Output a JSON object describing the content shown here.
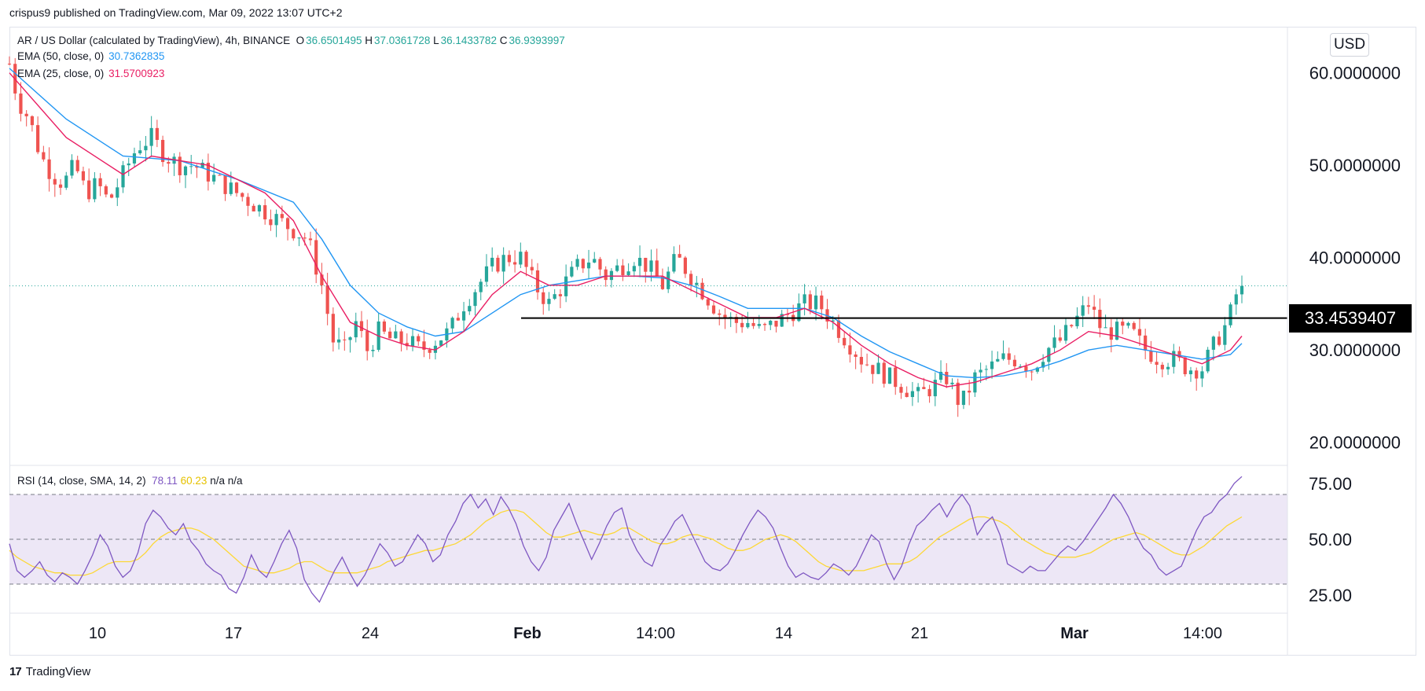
{
  "publisher": "crispus9 published on TradingView.com, Mar 09, 2022 13:07 UTC+2",
  "currency_button": "USD",
  "footer": {
    "logo": "17",
    "brand": "TradingView"
  },
  "legend": {
    "symbol": "AR / US Dollar (calculated by TradingView), 4h, BINANCE",
    "o_label": "O",
    "o_value": "36.6501495",
    "h_label": "H",
    "h_value": "37.0361728",
    "l_label": "L",
    "l_value": "36.1433782",
    "c_label": "C",
    "c_value": "36.9393997",
    "ema50_label": "EMA (50, close, 0)",
    "ema50_value": "30.7362835",
    "ema25_label": "EMA (25, close, 0)",
    "ema25_value": "31.5700923",
    "rsi_label": "RSI (14, close, SMA, 14, 2)",
    "rsi_value": "78.11",
    "rsi_sma_value": "60.23",
    "rsi_na1": "n/a",
    "rsi_na2": "n/a"
  },
  "colors": {
    "up": "#26a69a",
    "down": "#ef5350",
    "ema50": "#2196f3",
    "ema25": "#e91e63",
    "rsi": "#7e57c2",
    "rsi_sma": "#fdd835",
    "rsi_band": "#ede7f6"
  },
  "support_level": "33.4539407",
  "chart_data": [
    {
      "type": "candlestick",
      "title": "AR / US Dollar (calculated by TradingView), 4h, BINANCE",
      "x_tick_labels": [
        "10",
        "17",
        "24",
        "Feb",
        "14:00",
        "14",
        "21",
        "Mar",
        "14:00"
      ],
      "y_tick_labels": [
        "60.0000000",
        "50.0000000",
        "40.0000000",
        "30.0000000",
        "20.0000000"
      ],
      "ylim": [
        17.5,
        65
      ],
      "y_scale": "linear",
      "grid": false,
      "last_close": 36.9393997,
      "horizontal_line": 33.4539407,
      "price_path": [
        [
          0,
          61
        ],
        [
          6,
          57
        ],
        [
          14,
          55
        ],
        [
          22,
          51
        ],
        [
          30,
          49
        ],
        [
          38,
          48
        ],
        [
          46,
          50
        ],
        [
          54,
          47
        ],
        [
          62,
          48
        ],
        [
          70,
          46
        ],
        [
          80,
          49
        ],
        [
          90,
          52
        ],
        [
          100,
          53
        ],
        [
          110,
          51
        ],
        [
          120,
          50
        ],
        [
          130,
          50
        ],
        [
          140,
          49
        ],
        [
          150,
          48
        ],
        [
          160,
          47
        ],
        [
          170,
          46
        ],
        [
          180,
          45
        ],
        [
          190,
          44
        ],
        [
          200,
          43
        ],
        [
          210,
          42
        ],
        [
          220,
          37
        ],
        [
          228,
          31
        ],
        [
          236,
          30
        ],
        [
          244,
          33
        ],
        [
          252,
          30
        ],
        [
          260,
          32
        ],
        [
          270,
          31
        ],
        [
          280,
          31
        ],
        [
          290,
          30
        ],
        [
          300,
          31
        ],
        [
          310,
          32
        ],
        [
          320,
          35
        ],
        [
          330,
          37
        ],
        [
          340,
          39
        ],
        [
          350,
          40
        ],
        [
          360,
          40
        ],
        [
          370,
          37
        ],
        [
          380,
          35
        ],
        [
          390,
          37
        ],
        [
          400,
          39
        ],
        [
          410,
          40
        ],
        [
          420,
          38
        ],
        [
          430,
          39
        ],
        [
          440,
          40
        ],
        [
          450,
          39
        ],
        [
          460,
          37
        ],
        [
          470,
          40
        ],
        [
          480,
          38
        ],
        [
          490,
          36
        ],
        [
          500,
          34
        ],
        [
          510,
          33
        ],
        [
          520,
          33
        ],
        [
          530,
          32
        ],
        [
          540,
          33
        ],
        [
          550,
          34
        ],
        [
          560,
          35
        ],
        [
          570,
          35
        ],
        [
          580,
          33
        ],
        [
          590,
          31
        ],
        [
          600,
          29
        ],
        [
          610,
          28
        ],
        [
          620,
          27
        ],
        [
          630,
          26
        ],
        [
          640,
          25
        ],
        [
          650,
          26
        ],
        [
          660,
          27
        ],
        [
          670,
          24
        ],
        [
          680,
          27
        ],
        [
          690,
          28
        ],
        [
          700,
          29
        ],
        [
          710,
          29
        ],
        [
          720,
          28
        ],
        [
          730,
          30
        ],
        [
          740,
          31
        ],
        [
          750,
          33
        ],
        [
          760,
          35
        ],
        [
          770,
          32
        ],
        [
          780,
          32
        ],
        [
          790,
          32
        ],
        [
          800,
          30
        ],
        [
          810,
          29
        ],
        [
          820,
          29
        ],
        [
          830,
          28
        ],
        [
          840,
          28
        ],
        [
          850,
          31
        ],
        [
          858,
          33
        ],
        [
          864,
          36
        ],
        [
          868,
          37
        ]
      ],
      "ema25": [
        [
          0,
          60
        ],
        [
          40,
          53
        ],
        [
          80,
          49
        ],
        [
          100,
          51
        ],
        [
          140,
          50
        ],
        [
          180,
          47
        ],
        [
          200,
          44
        ],
        [
          220,
          38
        ],
        [
          240,
          33
        ],
        [
          260,
          31.5
        ],
        [
          280,
          30.5
        ],
        [
          300,
          30
        ],
        [
          320,
          32
        ],
        [
          340,
          36
        ],
        [
          360,
          38.5
        ],
        [
          380,
          37
        ],
        [
          400,
          37
        ],
        [
          420,
          38
        ],
        [
          440,
          38
        ],
        [
          460,
          38
        ],
        [
          480,
          36.5
        ],
        [
          500,
          35
        ],
        [
          520,
          33.5
        ],
        [
          540,
          33.5
        ],
        [
          560,
          34.5
        ],
        [
          580,
          33
        ],
        [
          600,
          30.5
        ],
        [
          620,
          28.5
        ],
        [
          640,
          27
        ],
        [
          660,
          26
        ],
        [
          680,
          26.5
        ],
        [
          700,
          27.5
        ],
        [
          720,
          28.5
        ],
        [
          740,
          30
        ],
        [
          760,
          32
        ],
        [
          780,
          31.5
        ],
        [
          800,
          30.5
        ],
        [
          820,
          29.5
        ],
        [
          840,
          28.5
        ],
        [
          860,
          30
        ],
        [
          868,
          31.5
        ]
      ],
      "ema50": [
        [
          0,
          60.5
        ],
        [
          40,
          55
        ],
        [
          80,
          51
        ],
        [
          120,
          50.5
        ],
        [
          160,
          48.5
        ],
        [
          200,
          46
        ],
        [
          220,
          42
        ],
        [
          240,
          37
        ],
        [
          260,
          34
        ],
        [
          280,
          32.5
        ],
        [
          300,
          31.5
        ],
        [
          320,
          32
        ],
        [
          340,
          34
        ],
        [
          360,
          36
        ],
        [
          380,
          37
        ],
        [
          400,
          37.5
        ],
        [
          420,
          38
        ],
        [
          440,
          38
        ],
        [
          460,
          37.8
        ],
        [
          480,
          37
        ],
        [
          500,
          35.8
        ],
        [
          520,
          34.5
        ],
        [
          540,
          34.5
        ],
        [
          560,
          34.5
        ],
        [
          580,
          33.5
        ],
        [
          600,
          31.5
        ],
        [
          620,
          29.8
        ],
        [
          640,
          28.5
        ],
        [
          660,
          27.2
        ],
        [
          680,
          27
        ],
        [
          700,
          27.2
        ],
        [
          720,
          27.8
        ],
        [
          740,
          28.8
        ],
        [
          760,
          30
        ],
        [
          780,
          30.5
        ],
        [
          800,
          30
        ],
        [
          820,
          29.5
        ],
        [
          840,
          29
        ],
        [
          860,
          29.5
        ],
        [
          868,
          30.7
        ]
      ]
    },
    {
      "type": "line",
      "title": "RSI (14, close, SMA, 14, 2)",
      "y_tick_labels": [
        "75.00",
        "50.00",
        "25.00"
      ],
      "ylim": [
        17,
        83
      ],
      "band": [
        30,
        70
      ],
      "midline": 50,
      "series": [
        {
          "name": "RSI",
          "values": [
            48,
            36,
            33,
            36,
            40,
            34,
            31,
            35,
            33,
            30,
            36,
            43,
            52,
            47,
            38,
            33,
            36,
            44,
            57,
            63,
            60,
            55,
            52,
            57,
            49,
            45,
            39,
            36,
            34,
            28,
            26,
            33,
            43,
            36,
            33,
            40,
            48,
            54,
            46,
            32,
            26,
            22,
            29,
            36,
            42,
            35,
            29,
            34,
            41,
            48,
            44,
            38,
            40,
            46,
            52,
            48,
            40,
            43,
            52,
            58,
            66,
            70,
            64,
            68,
            61,
            69,
            64,
            57,
            47,
            40,
            36,
            42,
            54,
            60,
            66,
            57,
            49,
            41,
            48,
            56,
            62,
            64,
            52,
            45,
            40,
            38,
            47,
            52,
            58,
            61,
            54,
            47,
            40,
            37,
            36,
            39,
            45,
            52,
            58,
            63,
            60,
            55,
            46,
            38,
            33,
            35,
            33,
            32,
            35,
            39,
            37,
            34,
            38,
            45,
            52,
            49,
            39,
            32,
            38,
            48,
            56,
            59,
            63,
            66,
            60,
            66,
            70,
            65,
            52,
            57,
            60,
            52,
            39,
            37,
            35,
            38,
            36,
            36,
            40,
            44,
            47,
            45,
            49,
            54,
            59,
            64,
            70,
            66,
            60,
            52,
            46,
            43,
            37,
            34,
            36,
            38,
            46,
            54,
            60,
            62,
            67,
            70,
            75,
            78
          ]
        },
        {
          "name": "SMA",
          "values": [
            45,
            42,
            40,
            38,
            37,
            36,
            35,
            35,
            34,
            34,
            34,
            35,
            37,
            39,
            40,
            40,
            40,
            41,
            44,
            48,
            51,
            53,
            54,
            55,
            55,
            54,
            52,
            50,
            47,
            44,
            41,
            38,
            37,
            36,
            35,
            35,
            36,
            37,
            39,
            40,
            40,
            38,
            36,
            35,
            35,
            35,
            35,
            36,
            37,
            38,
            40,
            41,
            42,
            43,
            44,
            45,
            45,
            46,
            47,
            48,
            50,
            52,
            55,
            58,
            60,
            62,
            63,
            63,
            62,
            59,
            56,
            53,
            51,
            51,
            52,
            53,
            54,
            53,
            52,
            52,
            53,
            55,
            55,
            53,
            51,
            49,
            48,
            48,
            49,
            51,
            52,
            52,
            51,
            50,
            48,
            46,
            45,
            45,
            46,
            48,
            50,
            51,
            52,
            51,
            49,
            46,
            43,
            40,
            38,
            37,
            36,
            36,
            36,
            36,
            37,
            38,
            39,
            39,
            39,
            40,
            42,
            45,
            48,
            51,
            53,
            55,
            57,
            59,
            60,
            60,
            59,
            58,
            56,
            53,
            50,
            48,
            46,
            44,
            43,
            42,
            42,
            42,
            43,
            44,
            46,
            48,
            50,
            51,
            52,
            53,
            52,
            50,
            48,
            46,
            44,
            43,
            43,
            45,
            47,
            50,
            53,
            56,
            58,
            60
          ]
        }
      ]
    }
  ]
}
